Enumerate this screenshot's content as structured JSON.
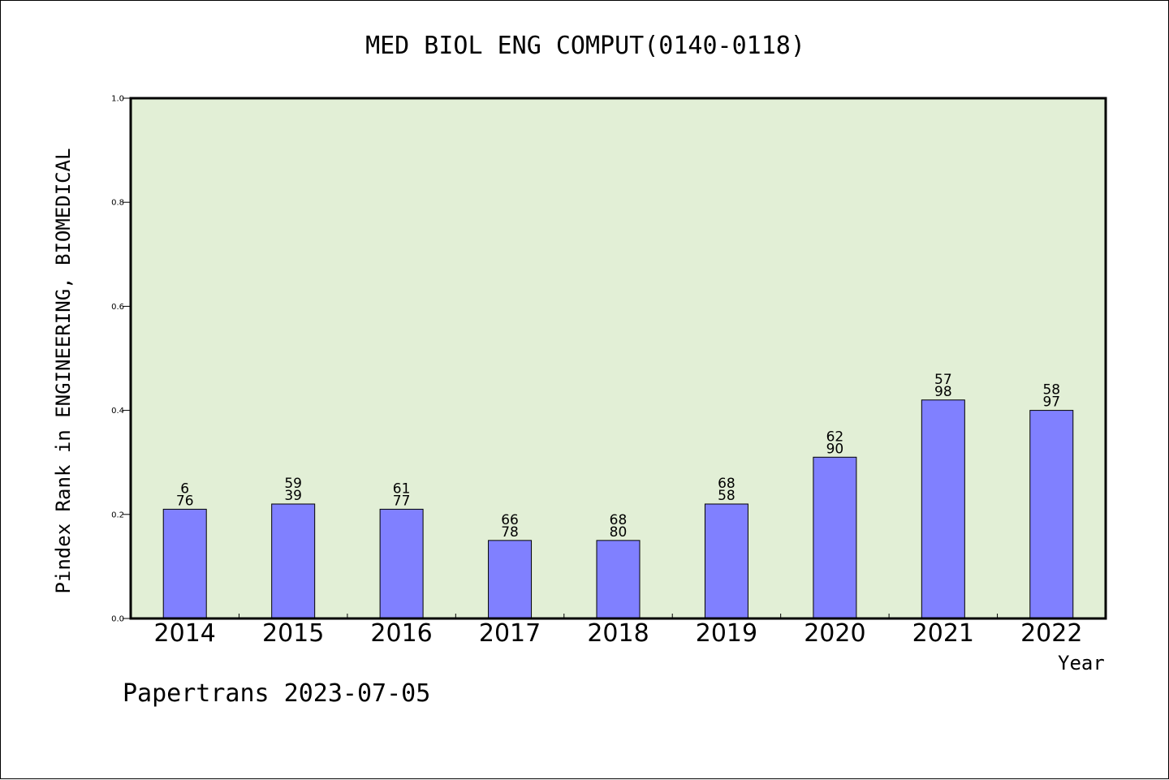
{
  "chart_data": {
    "type": "bar",
    "title": "MED BIOL ENG COMPUT(0140-0118)",
    "xlabel": "Year",
    "ylabel": "Pindex Rank in ENGINEERING, BIOMEDICAL",
    "categories": [
      "2014",
      "2015",
      "2016",
      "2017",
      "2018",
      "2019",
      "2020",
      "2021",
      "2022"
    ],
    "values": [
      0.21,
      0.22,
      0.21,
      0.15,
      0.15,
      0.22,
      0.31,
      0.42,
      0.4
    ],
    "bar_labels": [
      [
        "6",
        "76"
      ],
      [
        "59",
        "39"
      ],
      [
        "61",
        "77"
      ],
      [
        "66",
        "78"
      ],
      [
        "68",
        "80"
      ],
      [
        "68",
        "58"
      ],
      [
        "62",
        "90"
      ],
      [
        "57",
        "98"
      ],
      [
        "58",
        "97"
      ]
    ],
    "yticks": [
      "0.0",
      "0.2",
      "0.4",
      "0.6",
      "0.8",
      "1.0"
    ],
    "ylim": [
      0,
      1.0
    ],
    "grid": false,
    "colors": {
      "bar": "#8080ff",
      "plot_background": "#e2efd6"
    }
  },
  "footer": "Papertrans 2023-07-05"
}
